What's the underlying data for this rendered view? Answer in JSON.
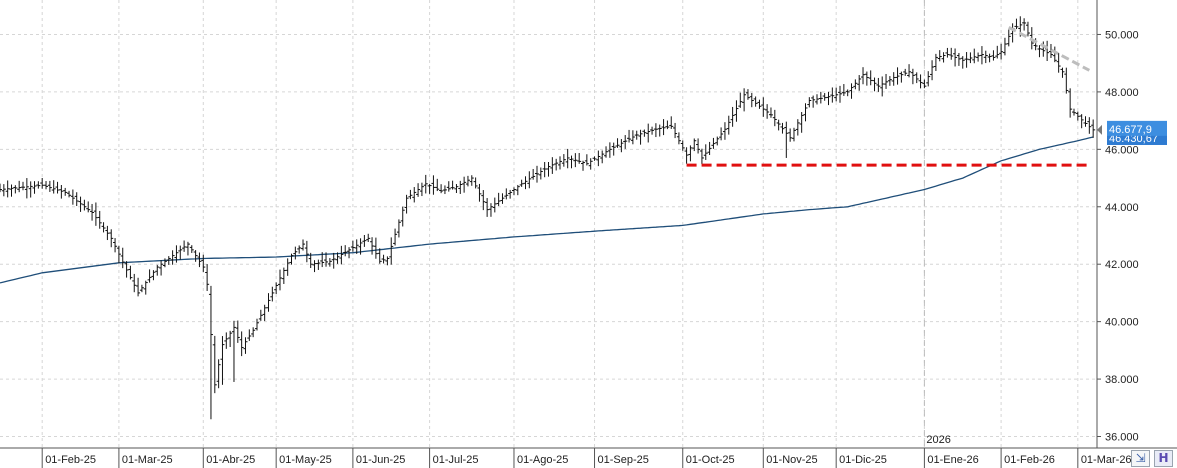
{
  "chart_data": {
    "type": "ohlc",
    "title": "",
    "xlabel": "",
    "ylabel": "",
    "ylim": [
      35600,
      51200
    ],
    "y_ticks": [
      36000,
      38000,
      40000,
      42000,
      44000,
      46000,
      48000,
      50000
    ],
    "y_tick_labels": [
      "36.000",
      "38.000",
      "40.000",
      "42.000",
      "44.000",
      "46.000",
      "48.000",
      "50.000"
    ],
    "x_ticks": [
      0,
      20,
      42,
      61,
      81,
      101,
      123,
      144,
      167,
      188,
      207,
      230,
      250,
      270
    ],
    "x_tick_labels": [
      "01-Feb-25",
      "01-Mar-25",
      "01-Abr-25",
      "01-May-25",
      "01-Jun-25",
      "01-Jul-25",
      "01-Ago-25",
      "01-Sep-25",
      "01-Oct-25",
      "01-Nov-25",
      "01-Dic-25",
      "01-Ene-26",
      "01-Feb-26",
      "01-Mar-26"
    ],
    "xlim": [
      -11,
      275
    ],
    "year_marker": {
      "index": 230,
      "label": "2026"
    },
    "price_anchors": {
      "x": [
        -11,
        0,
        6,
        13,
        18,
        22,
        25,
        30,
        35,
        38,
        40,
        42,
        43,
        45,
        47,
        50,
        52,
        55,
        60,
        65,
        68,
        70,
        75,
        80,
        85,
        88,
        90,
        95,
        100,
        104,
        108,
        112,
        116,
        118,
        120,
        125,
        132,
        137,
        142,
        148,
        155,
        160,
        164,
        168,
        170,
        172,
        178,
        183,
        186,
        190,
        195,
        200,
        204,
        210,
        214,
        218,
        222,
        226,
        230,
        233,
        236,
        240,
        245,
        248,
        250,
        253,
        256,
        258,
        260,
        263,
        266,
        268,
        272,
        274
      ],
      "y": [
        44600,
        44750,
        44500,
        43800,
        42900,
        41800,
        41000,
        41900,
        42400,
        42700,
        42300,
        41900,
        41300,
        37800,
        39200,
        39800,
        39100,
        39700,
        41000,
        42300,
        42700,
        42000,
        42100,
        42500,
        42900,
        42100,
        42200,
        44300,
        44800,
        44550,
        44700,
        45000,
        43900,
        44100,
        44300,
        44800,
        45400,
        45700,
        45500,
        46000,
        46500,
        46700,
        46800,
        45800,
        46300,
        45700,
        46700,
        47900,
        47600,
        47200,
        46400,
        47700,
        47800,
        48000,
        48600,
        48200,
        48500,
        48700,
        48200,
        49200,
        49300,
        49100,
        49300,
        49200,
        49400,
        50200,
        50400,
        49700,
        49500,
        49300,
        48700,
        47400,
        46900,
        46678
      ]
    },
    "spikes": [
      {
        "x": 44,
        "low": 36600
      },
      {
        "x": 47,
        "low": 37800
      },
      {
        "x": 50,
        "low": 37900
      },
      {
        "x": 52,
        "low": 38800
      },
      {
        "x": 168,
        "low": 45500
      },
      {
        "x": 194,
        "low": 45700
      },
      {
        "x": 254,
        "high": 50550
      }
    ],
    "moving_average": {
      "x": [
        -11,
        0,
        20,
        42,
        61,
        81,
        101,
        123,
        144,
        167,
        188,
        200,
        210,
        220,
        230,
        240,
        250,
        260,
        270,
        274
      ],
      "y": [
        41350,
        41700,
        42050,
        42200,
        42250,
        42400,
        42700,
        42950,
        43150,
        43350,
        43750,
        43900,
        44000,
        44300,
        44600,
        45000,
        45600,
        46000,
        46300,
        46430
      ]
    },
    "support_line": {
      "y": 45450,
      "x_start": 168,
      "x_end": 273
    },
    "trend_line": {
      "points": [
        [
          252,
          50250
        ],
        [
          273,
          48750
        ]
      ]
    },
    "last_value_label": "46.677,9",
    "ma_value_label": "46.430,67"
  },
  "controls": {
    "zoom_symbol": "⇲",
    "h_symbol": "H"
  }
}
